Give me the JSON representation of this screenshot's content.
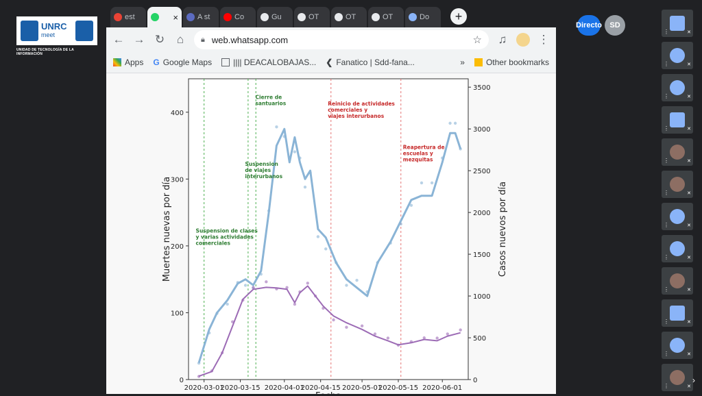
{
  "meet": {
    "logo_title": "UNRC",
    "logo_sub": "meet",
    "unit_label": "UNIDAD DE TECNOLOGÍA DE LA INFORMACIÓN",
    "chips": [
      {
        "label": "Directo",
        "color": "#1a73e8"
      },
      {
        "label": "SD",
        "color": "#9aa0a6"
      }
    ],
    "tiles": [
      "logo",
      "avatar",
      "avatar",
      "logo",
      "photo",
      "photo",
      "avatar",
      "avatar",
      "photo",
      "logo",
      "avatar",
      "photo"
    ]
  },
  "browser": {
    "tabs": [
      {
        "label": "est",
        "icon": "gmail-icon",
        "color": "#ea4335"
      },
      {
        "label": "",
        "icon": "whatsapp-icon",
        "color": "#25d366",
        "active": true
      },
      {
        "label": "A st",
        "icon": "mr-icon",
        "color": "#5c6bc0"
      },
      {
        "label": "Co",
        "icon": "youtube-icon",
        "color": "#ff0000"
      },
      {
        "label": "Gu",
        "icon": "drop-icon",
        "color": "#e8eaed"
      },
      {
        "label": "OT",
        "icon": "drop-icon",
        "color": "#e8eaed"
      },
      {
        "label": "OT",
        "icon": "drop-icon",
        "color": "#e8eaed"
      },
      {
        "label": "OT",
        "icon": "drop-icon",
        "color": "#e8eaed"
      },
      {
        "label": "Do",
        "icon": "download-icon",
        "color": "#8ab4f8"
      }
    ],
    "url": "web.whatsapp.com",
    "bookmarks": [
      "Apps",
      "Google Maps",
      "|||| DEACALOBAJAS...",
      "Fanatico | Sdd-fana...",
      "Other bookmarks"
    ]
  },
  "chart_data": {
    "type": "line",
    "xlabel": "Fecha",
    "ylabel_left": "Muertes nuevas por día",
    "ylabel_right": "Casos nuevos por día",
    "ylim_left": [
      0,
      450
    ],
    "ylim_right": [
      0,
      3600
    ],
    "y_ticks_left": [
      0,
      100,
      200,
      300,
      400
    ],
    "y_ticks_right": [
      0,
      500,
      1000,
      1500,
      2000,
      2500,
      3000,
      3500
    ],
    "x_ticks": [
      "2020-03-01",
      "2020-03-15",
      "2020-04-01",
      "2020-04-15",
      "2020-05-01",
      "2020-05-15",
      "2020-06-01"
    ],
    "annotations": [
      {
        "date": "2020-02-26",
        "text": "Suspension de clases\ny varias actividades\ncomerciales",
        "color": "#2e7d32",
        "y": 220
      },
      {
        "date": "2020-03-16",
        "text": "Suspension\nde viajes\ninterurbanos",
        "color": "#2e7d32",
        "y": 320
      },
      {
        "date": "2020-03-20",
        "text": "Cierre de\nsantuarios",
        "color": "#2e7d32",
        "y": 420
      },
      {
        "date": "2020-04-17",
        "text": "Reinicio de actividades\ncomerciales y\nviajes interurbanos",
        "color": "#c62828",
        "y": 410
      },
      {
        "date": "2020-05-16",
        "text": "Reapertura de\nescuelas y\nmezquitas",
        "color": "#c62828",
        "y": 345
      }
    ],
    "vlines": [
      {
        "date": "2020-03-01",
        "color": "#4caf50"
      },
      {
        "date": "2020-03-18",
        "color": "#4caf50"
      },
      {
        "date": "2020-03-21",
        "color": "#4caf50"
      },
      {
        "date": "2020-04-19",
        "color": "#e57373"
      },
      {
        "date": "2020-05-16",
        "color": "#e57373"
      }
    ],
    "series": [
      {
        "name": "Casos nuevos por día",
        "axis": "right",
        "color": "#8ab4d6",
        "points": [
          [
            "2020-02-28",
            200
          ],
          [
            "2020-03-03",
            600
          ],
          [
            "2020-03-06",
            800
          ],
          [
            "2020-03-10",
            950
          ],
          [
            "2020-03-14",
            1150
          ],
          [
            "2020-03-17",
            1200
          ],
          [
            "2020-03-20",
            1130
          ],
          [
            "2020-03-23",
            1300
          ],
          [
            "2020-03-26",
            2000
          ],
          [
            "2020-03-29",
            2800
          ],
          [
            "2020-04-01",
            3000
          ],
          [
            "2020-04-03",
            2600
          ],
          [
            "2020-04-05",
            2900
          ],
          [
            "2020-04-07",
            2600
          ],
          [
            "2020-04-09",
            2400
          ],
          [
            "2020-04-11",
            2500
          ],
          [
            "2020-04-14",
            1800
          ],
          [
            "2020-04-17",
            1700
          ],
          [
            "2020-04-21",
            1400
          ],
          [
            "2020-04-25",
            1200
          ],
          [
            "2020-04-29",
            1100
          ],
          [
            "2020-05-03",
            1000
          ],
          [
            "2020-05-07",
            1400
          ],
          [
            "2020-05-12",
            1650
          ],
          [
            "2020-05-16",
            1900
          ],
          [
            "2020-05-20",
            2150
          ],
          [
            "2020-05-24",
            2200
          ],
          [
            "2020-05-28",
            2200
          ],
          [
            "2020-06-01",
            2600
          ],
          [
            "2020-06-04",
            2950
          ],
          [
            "2020-06-06",
            2950
          ],
          [
            "2020-06-08",
            2760
          ]
        ]
      },
      {
        "name": "Muertes nuevas por día",
        "axis": "left",
        "color": "#9c6bb5",
        "points": [
          [
            "2020-02-28",
            5
          ],
          [
            "2020-03-04",
            12
          ],
          [
            "2020-03-08",
            40
          ],
          [
            "2020-03-12",
            80
          ],
          [
            "2020-03-16",
            120
          ],
          [
            "2020-03-20",
            135
          ],
          [
            "2020-03-25",
            138
          ],
          [
            "2020-03-29",
            137
          ],
          [
            "2020-04-02",
            135
          ],
          [
            "2020-04-05",
            115
          ],
          [
            "2020-04-07",
            130
          ],
          [
            "2020-04-10",
            140
          ],
          [
            "2020-04-13",
            125
          ],
          [
            "2020-04-16",
            110
          ],
          [
            "2020-04-20",
            95
          ],
          [
            "2020-04-25",
            85
          ],
          [
            "2020-05-01",
            75
          ],
          [
            "2020-05-06",
            65
          ],
          [
            "2020-05-11",
            58
          ],
          [
            "2020-05-15",
            52
          ],
          [
            "2020-05-20",
            55
          ],
          [
            "2020-05-25",
            60
          ],
          [
            "2020-05-30",
            58
          ],
          [
            "2020-06-03",
            65
          ],
          [
            "2020-06-08",
            70
          ]
        ]
      }
    ]
  }
}
